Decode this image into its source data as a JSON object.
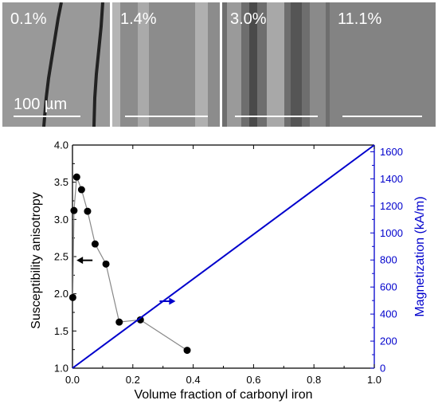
{
  "micrographs": {
    "panels": [
      {
        "label": "0.1%",
        "tone": "#9a9a9a"
      },
      {
        "label": "1.4%",
        "tone": "#8e8e8e"
      },
      {
        "label": "3.0%",
        "tone": "#6a6a6a"
      },
      {
        "label": "11.1%",
        "tone": "#7a7a7a"
      }
    ],
    "scale_label": "100 µm"
  },
  "chart_data": {
    "type": "scatter",
    "xlabel": "Volume fraction of carbonyl iron",
    "ylabel_left": "Susceptibility anisotropy",
    "ylabel_right": "Magnetization (kA/m)",
    "xlim": [
      0.0,
      1.0
    ],
    "ylim_left": [
      1.0,
      4.0
    ],
    "ylim_right": [
      0,
      1650
    ],
    "x_ticks": [
      "0.0",
      "0.2",
      "0.4",
      "0.6",
      "0.8",
      "1.0"
    ],
    "y_left_ticks": [
      "1.0",
      "1.5",
      "2.0",
      "2.5",
      "3.0",
      "3.5",
      "4.0"
    ],
    "y_right_ticks": [
      "0",
      "200",
      "400",
      "600",
      "800",
      "1000",
      "1200",
      "1400",
      "1600"
    ],
    "series": [
      {
        "axis": "left",
        "style": "markers-with-line",
        "color": "#000000",
        "x": [
          0.001,
          0.005,
          0.014,
          0.03,
          0.05,
          0.075,
          0.111,
          0.155,
          0.225,
          0.38
        ],
        "y": [
          1.95,
          3.12,
          3.57,
          3.4,
          3.11,
          2.67,
          2.4,
          1.62,
          1.65,
          1.24
        ]
      },
      {
        "axis": "right",
        "style": "line",
        "color": "#0000cc",
        "x": [
          0.0,
          1.0
        ],
        "y": [
          0,
          1650
        ]
      }
    ],
    "annotations": [
      {
        "type": "arrow",
        "direction": "left",
        "color": "#000000",
        "x": 0.04,
        "y": 2.45
      },
      {
        "type": "arrow",
        "direction": "right",
        "color": "#0000cc",
        "x": 0.315,
        "y": 1.9
      }
    ],
    "colors": {
      "left_axis": "#000000",
      "right_axis": "#0000cc"
    }
  }
}
